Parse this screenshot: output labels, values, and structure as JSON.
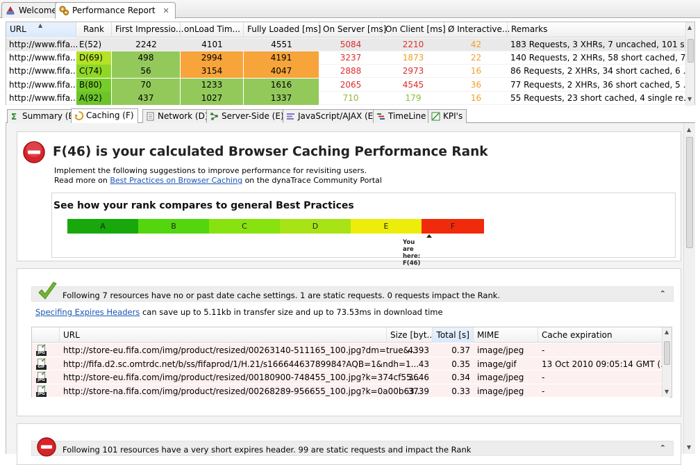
{
  "editor_tabs": [
    {
      "label": "Welcome",
      "icon": "dynatrace-icon"
    },
    {
      "label": "Performance Report",
      "icon": "gears-icon",
      "close": "✕"
    }
  ],
  "top_table": {
    "columns": [
      "URL",
      "Rank",
      "First Impressio...",
      "onLoad Tim...",
      "Fully Loaded [ms]",
      "On Server [ms]",
      "On Client [ms]",
      "Ø Interactive...",
      "Remarks"
    ],
    "rows": [
      {
        "url": "http://www.fifa...",
        "rank": "E(52)",
        "first": "2242",
        "onload": "4101",
        "full": "4551",
        "server": "5084",
        "client": "2210",
        "interactive": "42",
        "remarks": "183 Requests, 3 XHRs, 7 uncached, 101 s...",
        "rank_color": "#ffffff",
        "first_color": "#ffffff",
        "onload_color": "#ffffff",
        "full_color": "#ffffff",
        "server_cls": "red",
        "client_cls": "red",
        "inter_cls": "orange"
      },
      {
        "url": "http://www.fifa...",
        "rank": "D(69)",
        "first": "498",
        "onload": "2994",
        "full": "4191",
        "server": "3237",
        "client": "1873",
        "interactive": "22",
        "remarks": "140 Requests, 2 XHRs, 58 short cached, 7...",
        "rank_color": "#b3e227",
        "first_color": "#93c95b",
        "onload_color": "#f7a43b",
        "full_color": "#f7a43b",
        "server_cls": "red",
        "client_cls": "orange",
        "inter_cls": "orange"
      },
      {
        "url": "http://www.fifa...",
        "rank": "C(74)",
        "first": "56",
        "onload": "3154",
        "full": "4047",
        "server": "2888",
        "client": "2973",
        "interactive": "16",
        "remarks": "86 Requests, 2 XHRs, 34 short cached, 6 ...",
        "rank_color": "#8fd627",
        "first_color": "#93c95b",
        "onload_color": "#f7a43b",
        "full_color": "#f7a43b",
        "server_cls": "red",
        "client_cls": "red",
        "inter_cls": "orange"
      },
      {
        "url": "http://www.fifa...",
        "rank": "B(80)",
        "first": "70",
        "onload": "1233",
        "full": "1616",
        "server": "2065",
        "client": "4545",
        "interactive": "36",
        "remarks": "77 Requests, 2 XHRs, 36 short cached, 5 ...",
        "rank_color": "#77cc28",
        "first_color": "#93c95b",
        "onload_color": "#93c95b",
        "full_color": "#93c95b",
        "server_cls": "red",
        "client_cls": "red",
        "inter_cls": "orange"
      },
      {
        "url": "http://www.fifa...",
        "rank": "A(92)",
        "first": "437",
        "onload": "1027",
        "full": "1337",
        "server": "710",
        "client": "179",
        "interactive": "16",
        "remarks": "55 Requests, 23 short cached, 4 single re...",
        "rank_color": "#6cc42b",
        "first_color": "#93c95b",
        "onload_color": "#93c95b",
        "full_color": "#93c95b",
        "server_cls": "green",
        "client_cls": "green",
        "inter_cls": "orange"
      }
    ]
  },
  "sub_tabs": [
    {
      "label": "Summary (E)",
      "icon": "sigma-icon"
    },
    {
      "label": "Caching (F)",
      "icon": "caching-icon"
    },
    {
      "label": "Network (D)",
      "icon": "page-icon"
    },
    {
      "label": "Server-Side (E)",
      "icon": "server-icon"
    },
    {
      "label": "JavaScript/AJAX (E)",
      "icon": "javascript-icon"
    },
    {
      "label": "TimeLine",
      "icon": "timeline-icon"
    },
    {
      "label": "KPI's",
      "icon": "kpi-icon"
    }
  ],
  "caching": {
    "title": "F(46) is your calculated Browser Caching Performance Rank",
    "line1": "Implement the following suggestions to improve performance for revisiting users.",
    "line2_pre": "Read more on ",
    "line2_link": "Best Practices on Browser Caching",
    "line2_post": " on the dynaTrace Community Portal",
    "compare_heading": "See how your rank compares to general Best Practices",
    "scale": [
      {
        "label": "A",
        "color": "#18a80c"
      },
      {
        "label": "B",
        "color": "#54d60f"
      },
      {
        "label": "C",
        "color": "#88e20f"
      },
      {
        "label": "D",
        "color": "#a7e315"
      },
      {
        "label": "E",
        "color": "#eded0c"
      },
      {
        "label": "F",
        "color": "#f12a0c"
      }
    ],
    "you_are_here": "You are here: F(46)",
    "section1_text": "Following 7 resources have no or past date cache settings. 1 are static requests. 0 requests impact the Rank.",
    "save_link": "Specifing Expires Headers",
    "save_text": " can save up to 5.11kb in transfer size and up to 73.53ms in download time",
    "res_columns": [
      "URL",
      "Size [byt...",
      "Total [s]",
      "MIME",
      "Cache expiration"
    ],
    "res_rows": [
      {
        "tag": "JPG",
        "url": "http://store-eu.fifa.com/img/product/resized/00263140-511165_100.jpg?dm=true&...",
        "size": "4393",
        "total": "0.37",
        "mime": "image/jpeg",
        "exp": "-"
      },
      {
        "tag": "GIF",
        "url": "http://fifa.d2.sc.omtrdc.net/b/ss/fifaprod/1/H.21/s16664463789984?AQB=1&ndh=1...",
        "size": "43",
        "total": "0.35",
        "mime": "image/gif",
        "exp": "13 Oct 2010 09:05:14 GMT (..."
      },
      {
        "tag": "JPG",
        "url": "http://store-eu.fifa.com/img/product/resized/00180900-748455_100.jpg?k=374cf55...",
        "size": "3646",
        "total": "0.34",
        "mime": "image/jpeg",
        "exp": "-"
      },
      {
        "tag": "JPG",
        "url": "http://store-na.fifa.com/img/product/resized/00268289-956655_100.jpg?k=0a00b63...",
        "size": "3739",
        "total": "0.33",
        "mime": "image/jpeg",
        "exp": "-"
      }
    ],
    "section2_text": "Following 101 resources have a very short expires header. 99 are static requests and impact the Rank"
  }
}
